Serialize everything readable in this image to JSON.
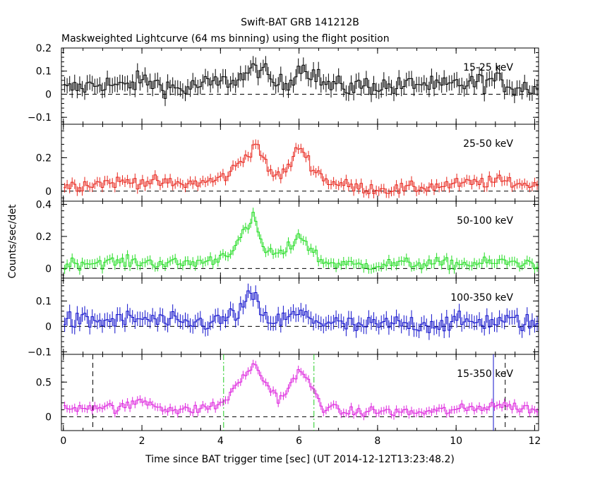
{
  "chart_data": {
    "type": "line",
    "title": "Swift-BAT GRB 141212B",
    "subtitle": "Maskweighted Lightcurve (64 ms binning) using the flight position",
    "xlabel": "Time since BAT trigger time [sec] (UT 2014-12-12T13:23:48.2)",
    "ylabel": "Counts/sec/det",
    "xlim": [
      -0.05,
      12.1
    ],
    "x_ticks": [
      0,
      2,
      4,
      6,
      8,
      10,
      12
    ],
    "x_tick_labels": [
      "0",
      "2",
      "4",
      "6",
      "8",
      "10",
      "12"
    ],
    "bin_width": 0.064,
    "grid": false,
    "legend": "per-panel label at top-right",
    "panels": [
      {
        "name": "15-25 keV",
        "color": "#000000",
        "ylim": [
          -0.13,
          0.2
        ],
        "y_ticks": [
          -0.1,
          0,
          0.1,
          0.2
        ],
        "y_tick_labels": [
          "−0.1",
          "0",
          "0.1",
          "0.2"
        ],
        "keypoints": [
          [
            0,
            0.02
          ],
          [
            0.5,
            0.03
          ],
          [
            1.0,
            0.05
          ],
          [
            1.5,
            0.03
          ],
          [
            2.0,
            0.06
          ],
          [
            2.5,
            0.04
          ],
          [
            3.0,
            0.02
          ],
          [
            3.5,
            0.04
          ],
          [
            4.0,
            0.05
          ],
          [
            4.5,
            0.07
          ],
          [
            5.0,
            0.12
          ],
          [
            5.3,
            0.05
          ],
          [
            5.7,
            0.04
          ],
          [
            6.0,
            0.12
          ],
          [
            6.3,
            0.1
          ],
          [
            6.7,
            0.04
          ],
          [
            7.2,
            0.03
          ],
          [
            7.8,
            0.04
          ],
          [
            8.5,
            0.03
          ],
          [
            9.0,
            0.05
          ],
          [
            9.5,
            0.03
          ],
          [
            10.0,
            0.04
          ],
          [
            10.5,
            0.05
          ],
          [
            11.0,
            0.06
          ],
          [
            11.5,
            0.03
          ],
          [
            12.1,
            0.03
          ]
        ],
        "noise": 0.035
      },
      {
        "name": "25-50 keV",
        "color": "#e8241b",
        "ylim": [
          -0.06,
          0.4
        ],
        "y_ticks": [
          0,
          0.2
        ],
        "y_tick_labels": [
          "0",
          "0.2"
        ],
        "keypoints": [
          [
            0,
            0.03
          ],
          [
            1.0,
            0.05
          ],
          [
            2.0,
            0.06
          ],
          [
            3.0,
            0.04
          ],
          [
            3.8,
            0.06
          ],
          [
            4.2,
            0.1
          ],
          [
            4.6,
            0.2
          ],
          [
            4.95,
            0.29
          ],
          [
            5.2,
            0.12
          ],
          [
            5.5,
            0.09
          ],
          [
            5.8,
            0.16
          ],
          [
            6.0,
            0.28
          ],
          [
            6.3,
            0.16
          ],
          [
            6.7,
            0.06
          ],
          [
            7.5,
            0.02
          ],
          [
            8.5,
            0.01
          ],
          [
            9.5,
            0.03
          ],
          [
            10.5,
            0.05
          ],
          [
            11.2,
            0.06
          ],
          [
            12.1,
            0.03
          ]
        ],
        "noise": 0.03
      },
      {
        "name": "50-100 keV",
        "color": "#22dd22",
        "ylim": [
          -0.06,
          0.42
        ],
        "y_ticks": [
          0,
          0.2,
          0.4
        ],
        "y_tick_labels": [
          "0",
          "0.2",
          "0.4"
        ],
        "keypoints": [
          [
            0,
            0.03
          ],
          [
            1.0,
            0.04
          ],
          [
            2.0,
            0.04
          ],
          [
            3.0,
            0.03
          ],
          [
            3.8,
            0.05
          ],
          [
            4.2,
            0.1
          ],
          [
            4.5,
            0.18
          ],
          [
            4.85,
            0.32
          ],
          [
            5.1,
            0.12
          ],
          [
            5.5,
            0.08
          ],
          [
            5.8,
            0.14
          ],
          [
            6.0,
            0.22
          ],
          [
            6.3,
            0.12
          ],
          [
            6.6,
            0.04
          ],
          [
            7.5,
            0.02
          ],
          [
            8.5,
            0.03
          ],
          [
            9.5,
            0.03
          ],
          [
            10.5,
            0.03
          ],
          [
            11.2,
            0.04
          ],
          [
            12.1,
            0.03
          ]
        ],
        "noise": 0.03
      },
      {
        "name": "100-350 keV",
        "color": "#1010cc",
        "ylim": [
          -0.11,
          0.19
        ],
        "y_ticks": [
          -0.1,
          0,
          0.1
        ],
        "y_tick_labels": [
          "−0.1",
          "0",
          "0.1"
        ],
        "keypoints": [
          [
            0,
            0.02
          ],
          [
            1.0,
            0.02
          ],
          [
            2.0,
            0.03
          ],
          [
            3.0,
            0.01
          ],
          [
            4.0,
            0.02
          ],
          [
            4.5,
            0.06
          ],
          [
            4.8,
            0.13
          ],
          [
            5.1,
            0.03
          ],
          [
            5.5,
            0.02
          ],
          [
            6.0,
            0.05
          ],
          [
            6.5,
            0.02
          ],
          [
            7.5,
            0.0
          ],
          [
            8.5,
            0.01
          ],
          [
            9.5,
            0.01
          ],
          [
            10.5,
            0.02
          ],
          [
            11.5,
            0.02
          ],
          [
            12.1,
            0.01
          ]
        ],
        "noise": 0.03
      },
      {
        "name": "15-350 keV",
        "color": "#dd22dd",
        "ylim": [
          -0.2,
          0.9
        ],
        "y_ticks": [
          0,
          0.5
        ],
        "y_tick_labels": [
          "0",
          "0.5"
        ],
        "keypoints": [
          [
            0,
            0.1
          ],
          [
            0.5,
            0.15
          ],
          [
            1.0,
            0.15
          ],
          [
            1.5,
            0.12
          ],
          [
            2.0,
            0.24
          ],
          [
            2.5,
            0.14
          ],
          [
            3.0,
            0.08
          ],
          [
            3.5,
            0.12
          ],
          [
            4.0,
            0.18
          ],
          [
            4.3,
            0.35
          ],
          [
            4.6,
            0.6
          ],
          [
            4.85,
            0.75
          ],
          [
            5.2,
            0.45
          ],
          [
            5.5,
            0.25
          ],
          [
            5.8,
            0.45
          ],
          [
            6.0,
            0.68
          ],
          [
            6.3,
            0.45
          ],
          [
            6.6,
            0.15
          ],
          [
            7.2,
            0.06
          ],
          [
            8.0,
            0.08
          ],
          [
            9.0,
            0.06
          ],
          [
            10.0,
            0.1
          ],
          [
            10.5,
            0.12
          ],
          [
            11.0,
            0.18
          ],
          [
            11.5,
            0.14
          ],
          [
            12.1,
            0.1
          ]
        ],
        "noise": 0.06,
        "markers": [
          {
            "x": 0.75,
            "style": "dashed",
            "color": "#000000"
          },
          {
            "x": 4.08,
            "style": "dashdot",
            "color": "#22cc22"
          },
          {
            "x": 6.38,
            "style": "dashdot",
            "color": "#22cc22"
          },
          {
            "x": 10.95,
            "style": "solid",
            "color": "#1010cc"
          },
          {
            "x": 11.25,
            "style": "dashed",
            "color": "#000000"
          }
        ]
      }
    ]
  }
}
